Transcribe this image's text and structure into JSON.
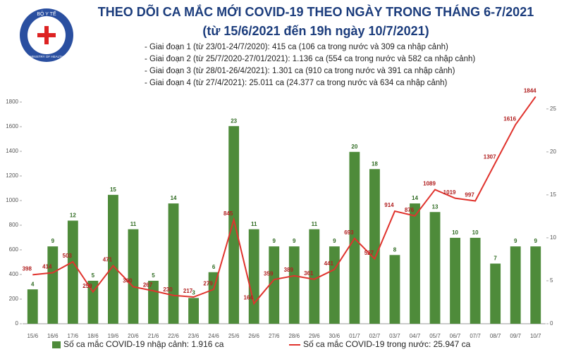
{
  "logo": {
    "top": "BỘ Y TẾ",
    "bottom": "MINISTRY OF HEALTH"
  },
  "chart_data": {
    "type": "bar",
    "title": "THEO DÕI CA MẮC MỚI COVID-19 THEO NGÀY TRONG THÁNG 6-7/2021",
    "subtitle": "(từ 15/6/2021 đến 19h ngày 10/7/2021)",
    "notes": [
      "- Giai đoạn 1 (từ 23/01-24/7/2020): 415 ca (106 ca trong nước và 309 ca nhập cảnh)",
      "- Giai đoạn 2 (từ 25/7/2020-27/01/2021): 1.136 ca (554 ca trong nước và 582 ca nhập cảnh)",
      "- Giai đoạn 3 (từ 28/01-26/4/2021): 1.301 ca (910 ca trong nước và 391 ca nhập cảnh)",
      "- Giai đoạn 4 (từ 27/4/2021): 25.011 ca (24.377 ca trong nước và 634 ca nhập cảnh)"
    ],
    "categories": [
      "15/6",
      "16/6",
      "17/6",
      "18/6",
      "19/6",
      "20/6",
      "21/6",
      "22/6",
      "23/6",
      "24/6",
      "25/6",
      "26/6",
      "27/6",
      "28/6",
      "29/6",
      "30/6",
      "01/7",
      "02/7",
      "03/7",
      "04/7",
      "05/7",
      "06/7",
      "07/7",
      "08/7",
      "09/7",
      "10/7"
    ],
    "series": [
      {
        "name": "Số ca mắc COVID-19 nhập cảnh: 1.916 ca",
        "type": "bar",
        "axis": "y2",
        "color": "#4e8b3a",
        "values": [
          4,
          9,
          12,
          5,
          15,
          11,
          5,
          14,
          3,
          6,
          23,
          11,
          9,
          9,
          11,
          9,
          20,
          18,
          8,
          14,
          13,
          10,
          10,
          7,
          9,
          9
        ]
      },
      {
        "name": "Số ca mắc COVID-19 trong nước: 25.947 ca",
        "type": "line",
        "color": "#e0332d",
        "values": [
          398,
          414,
          503,
          259,
          471,
          300,
          267,
          230,
          217,
          279,
          845,
          164,
          359,
          389,
          361,
          441,
          693,
          527,
          914,
          876,
          1089,
          1019,
          997,
          1307,
          1616,
          1844
        ]
      }
    ],
    "ylim": [
      0,
      1800
    ],
    "yticks": [
      0,
      200,
      400,
      600,
      800,
      1000,
      1200,
      1400,
      1600,
      1800
    ],
    "y2lim": [
      0,
      25.8
    ],
    "y2ticks": [
      0,
      5,
      10,
      15,
      20,
      25
    ]
  }
}
